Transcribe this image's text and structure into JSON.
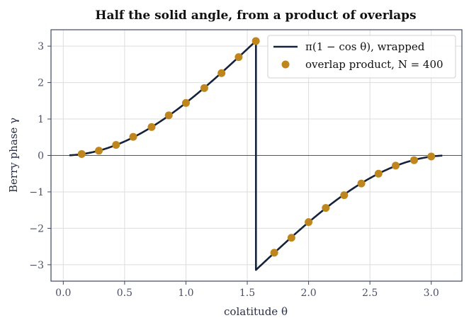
{
  "chart_data": {
    "type": "line",
    "title": "Half the solid angle, from a product of overlaps",
    "xlabel": "colatitude θ",
    "ylabel": "Berry phase γ",
    "xlim": [
      -0.1,
      3.25
    ],
    "ylim": [
      -3.45,
      3.45
    ],
    "xticks": [
      0.0,
      0.5,
      1.0,
      1.5,
      2.0,
      2.5,
      3.0
    ],
    "xtick_labels": [
      "0.0",
      "0.5",
      "1.0",
      "1.5",
      "2.0",
      "2.5",
      "3.0"
    ],
    "yticks": [
      -3,
      -2,
      -1,
      0,
      1,
      2,
      3
    ],
    "ytick_labels": [
      "−3",
      "−2",
      "−1",
      "0",
      "1",
      "2",
      "3"
    ],
    "grid": true,
    "legend_position": "top-right",
    "colors": {
      "line": "#16213a",
      "markers": "#c0861e",
      "zero_line": "#4a5575"
    },
    "series": [
      {
        "name": "π(1 − cos θ), wrapped",
        "kind": "line",
        "function": "wrap(pi*(1 - cos(x)))",
        "x_range": [
          0.05,
          3.09
        ]
      },
      {
        "name": "overlap product, N = 400",
        "kind": "scatter",
        "x": [
          0.15,
          0.29,
          0.43,
          0.57,
          0.72,
          0.86,
          1.0,
          1.15,
          1.29,
          1.43,
          1.57,
          1.72,
          1.86,
          2.0,
          2.14,
          2.29,
          2.43,
          2.57,
          2.71,
          2.86,
          3.0
        ],
        "y": [
          0.04,
          0.13,
          0.29,
          0.51,
          0.78,
          1.1,
          1.44,
          1.85,
          2.26,
          2.7,
          3.14,
          -2.67,
          -2.26,
          -1.83,
          -1.44,
          -1.09,
          -0.77,
          -0.5,
          -0.28,
          -0.13,
          -0.03
        ]
      }
    ]
  }
}
